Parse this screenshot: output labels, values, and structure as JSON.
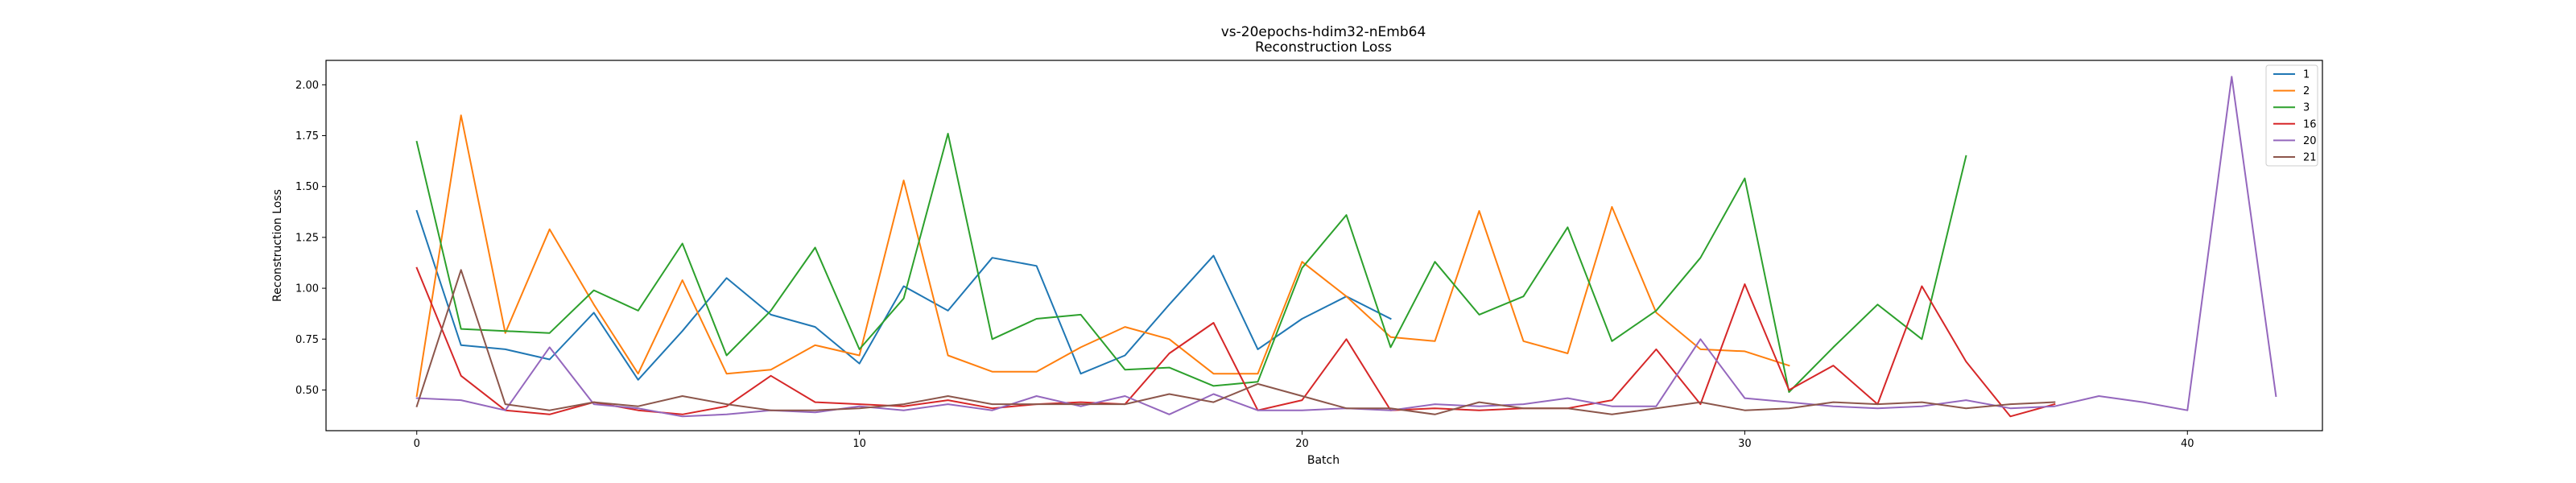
{
  "chart_data": {
    "type": "line",
    "title": "vs-20epochs-hdim32-nEmb64",
    "subtitle": "Reconstruction Loss",
    "xlabel": "Batch",
    "ylabel": "Reconstruction Loss",
    "xlim": [
      -2.05,
      43.05
    ],
    "ylim": [
      0.3,
      2.12
    ],
    "xticks": [
      0,
      10,
      20,
      30,
      40
    ],
    "yticks": [
      0.5,
      0.75,
      1.0,
      1.25,
      1.5,
      1.75,
      2.0
    ],
    "ytick_labels": [
      "0.50",
      "0.75",
      "1.00",
      "1.25",
      "1.50",
      "1.75",
      "2.00"
    ],
    "grid": false,
    "legend_position": "top-right",
    "series": [
      {
        "name": "1",
        "color": "#1f77b4",
        "values": [
          1.38,
          0.72,
          0.7,
          0.65,
          0.88,
          0.55,
          0.79,
          1.05,
          0.87,
          0.81,
          0.63,
          1.01,
          0.89,
          1.15,
          1.11,
          0.58,
          0.67,
          0.92,
          1.16,
          0.7,
          0.85,
          0.96,
          0.85
        ]
      },
      {
        "name": "2",
        "color": "#ff7f0e",
        "values": [
          0.47,
          1.85,
          0.78,
          1.29,
          0.92,
          0.58,
          1.04,
          0.58,
          0.6,
          0.72,
          0.67,
          1.53,
          0.67,
          0.59,
          0.59,
          0.71,
          0.81,
          0.75,
          0.58,
          0.58,
          1.13,
          0.96,
          0.76,
          0.74,
          1.38,
          0.74,
          0.68,
          1.4,
          0.88,
          0.7,
          0.69,
          0.62
        ]
      },
      {
        "name": "3",
        "color": "#2ca02c",
        "values": [
          1.72,
          0.8,
          0.79,
          0.78,
          0.99,
          0.89,
          1.22,
          0.67,
          0.89,
          1.2,
          0.7,
          0.95,
          1.76,
          0.75,
          0.85,
          0.87,
          0.6,
          0.61,
          0.52,
          0.54,
          1.1,
          1.36,
          0.71,
          1.13,
          0.87,
          0.96,
          1.3,
          0.74,
          0.89,
          1.15,
          1.54,
          0.49,
          0.71,
          0.92,
          0.75,
          1.65
        ]
      },
      {
        "name": "16",
        "color": "#d62728",
        "values": [
          1.1,
          0.57,
          0.4,
          0.38,
          0.44,
          0.4,
          0.38,
          0.42,
          0.57,
          0.44,
          0.43,
          0.42,
          0.45,
          0.41,
          0.43,
          0.44,
          0.43,
          0.68,
          0.83,
          0.4,
          0.45,
          0.75,
          0.4,
          0.41,
          0.4,
          0.41,
          0.41,
          0.45,
          0.7,
          0.43,
          1.02,
          0.5,
          0.62,
          0.43,
          1.01,
          0.64,
          0.37,
          0.43
        ]
      },
      {
        "name": "20",
        "color": "#9467bd",
        "values": [
          0.46,
          0.45,
          0.4,
          0.71,
          0.43,
          0.41,
          0.37,
          0.38,
          0.4,
          0.39,
          0.42,
          0.4,
          0.43,
          0.4,
          0.47,
          0.42,
          0.47,
          0.38,
          0.48,
          0.4,
          0.4,
          0.41,
          0.4,
          0.43,
          0.42,
          0.43,
          0.46,
          0.42,
          0.42,
          0.75,
          0.46,
          0.44,
          0.42,
          0.41,
          0.42,
          0.45,
          0.41,
          0.42,
          0.47,
          0.44,
          0.4,
          2.04,
          0.47
        ]
      },
      {
        "name": "21",
        "color": "#8c564b",
        "values": [
          0.42,
          1.09,
          0.43,
          0.4,
          0.44,
          0.42,
          0.47,
          0.43,
          0.4,
          0.4,
          0.41,
          0.43,
          0.47,
          0.43,
          0.43,
          0.43,
          0.43,
          0.48,
          0.44,
          0.53,
          0.47,
          0.41,
          0.41,
          0.38,
          0.44,
          0.41,
          0.41,
          0.38,
          0.41,
          0.44,
          0.4,
          0.41,
          0.44,
          0.43,
          0.44,
          0.41,
          0.43,
          0.44
        ]
      }
    ]
  }
}
